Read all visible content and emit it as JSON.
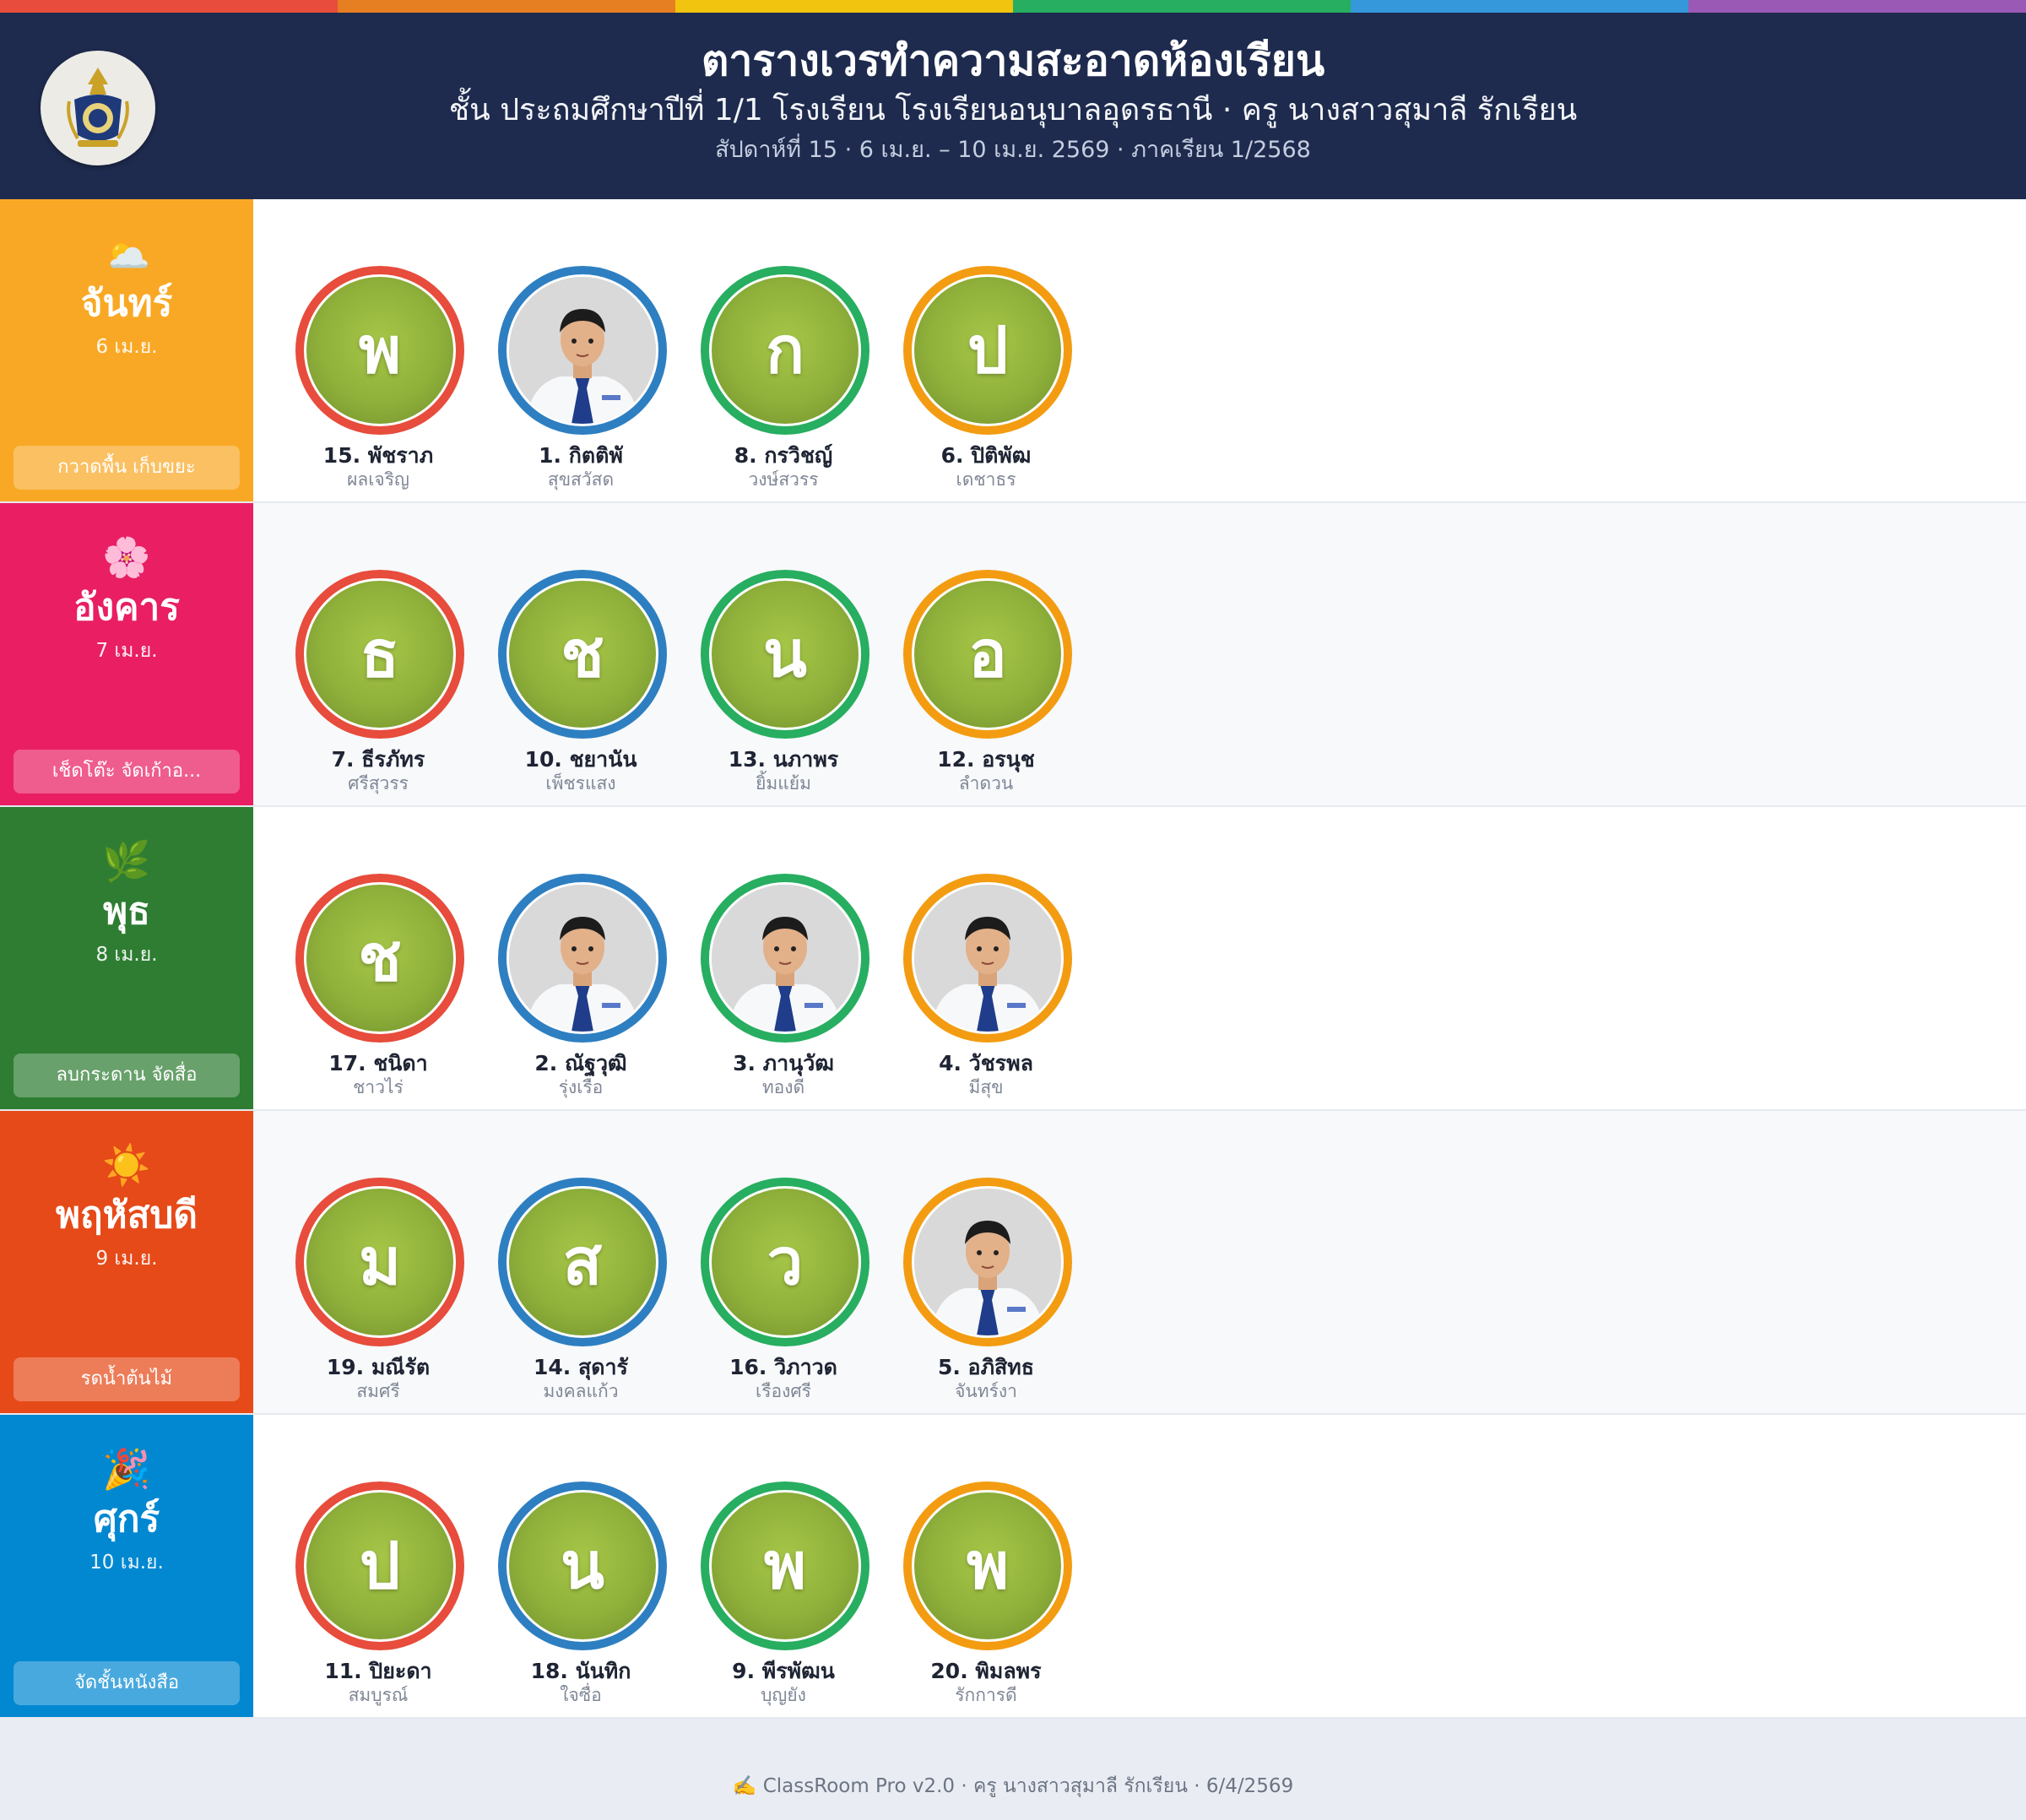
{
  "theme": {
    "rainbow": [
      "#e74c3c",
      "#e67e22",
      "#f1c40f",
      "#27ae60",
      "#3498db",
      "#9b59b6"
    ],
    "header_bg": "#1e2b4e"
  },
  "header": {
    "title": "ตารางเวรทำความสะอาดห้องเรียน",
    "subtitle": "ชั้น ประถมศึกษาปีที่ 1/1 โรงเรียน โรงเรียนอนุบาลอุดรธานี  ·  ครู นางสาวสุมาลี รักเรียน",
    "week_line": "สัปดาห์ที่ 15  ·  6 เม.ย. – 10 เม.ย. 2569  ·  ภาคเรียน 1/2568",
    "logo_icon": "school-emblem-icon"
  },
  "days": [
    {
      "name": "จันทร์",
      "date": "6 เม.ย.",
      "emoji": "⛅",
      "task": "กวาดพื้น เก็บขยะ",
      "color": "#f9a825",
      "students": [
        {
          "initial": "พ",
          "photo": false,
          "name": "15. พัชราภ",
          "last": "ผลเจริญ"
        },
        {
          "initial": "",
          "photo": true,
          "name": "1. กิตติพั",
          "last": "สุขสวัสด"
        },
        {
          "initial": "ก",
          "photo": false,
          "name": "8. กรวิชญ์",
          "last": "วงษ์สวรร"
        },
        {
          "initial": "ป",
          "photo": false,
          "name": "6. ปิติพัฒ",
          "last": "เดชาธร"
        }
      ]
    },
    {
      "name": "อังคาร",
      "date": "7 เม.ย.",
      "emoji": "🌸",
      "task": "เช็ดโต๊ะ จัดเก้าอ...",
      "color": "#e91e63",
      "students": [
        {
          "initial": "ธ",
          "photo": false,
          "name": "7. ธีรภัทร",
          "last": "ศรีสุวรร"
        },
        {
          "initial": "ช",
          "photo": false,
          "name": "10. ชยานัน",
          "last": "เพ็ชรแสง"
        },
        {
          "initial": "น",
          "photo": false,
          "name": "13. นภาพร",
          "last": "ยิ้มแย้ม"
        },
        {
          "initial": "อ",
          "photo": false,
          "name": "12. อรนุช",
          "last": "ลำดวน"
        }
      ]
    },
    {
      "name": "พุธ",
      "date": "8 เม.ย.",
      "emoji": "🌿",
      "task": "ลบกระดาน จัดสื่อ",
      "color": "#2e7d32",
      "students": [
        {
          "initial": "ช",
          "photo": false,
          "name": "17. ชนิดา",
          "last": "ชาวไร่"
        },
        {
          "initial": "",
          "photo": true,
          "name": "2. ณัฐวุฒิ",
          "last": "รุ่งเรือ"
        },
        {
          "initial": "",
          "photo": true,
          "name": "3. ภานุวัฒ",
          "last": "ทองดี"
        },
        {
          "initial": "",
          "photo": true,
          "name": "4. วัชรพล",
          "last": "มีสุข"
        }
      ]
    },
    {
      "name": "พฤหัสบดี",
      "date": "9 เม.ย.",
      "emoji": "☀️",
      "task": "รดน้ำต้นไม้",
      "color": "#e64a19",
      "students": [
        {
          "initial": "ม",
          "photo": false,
          "name": "19. มณีรัต",
          "last": "สมศรี"
        },
        {
          "initial": "ส",
          "photo": false,
          "name": "14. สุดารั",
          "last": "มงคลแก้ว"
        },
        {
          "initial": "ว",
          "photo": false,
          "name": "16. วิภาวด",
          "last": "เรืองศรี"
        },
        {
          "initial": "",
          "photo": true,
          "name": "5. อภิสิทธ",
          "last": "จันทร์งา"
        }
      ]
    },
    {
      "name": "ศุกร์",
      "date": "10 เม.ย.",
      "emoji": "🎉",
      "task": "จัดชั้นหนังสือ",
      "color": "#0288d1",
      "students": [
        {
          "initial": "ป",
          "photo": false,
          "name": "11. ปิยะดา",
          "last": "สมบูรณ์"
        },
        {
          "initial": "น",
          "photo": false,
          "name": "18. นันทิก",
          "last": "ใจซื่อ"
        },
        {
          "initial": "พ",
          "photo": false,
          "name": "9. พีรพัฒน",
          "last": "บุญยัง"
        },
        {
          "initial": "พ",
          "photo": false,
          "name": "20. พิมลพร",
          "last": "รักการดี"
        }
      ]
    }
  ],
  "footer": {
    "icon": "✍️",
    "text": "ClassRoom Pro v2.0  ·  ครู นางสาวสุมาลี รักเรียน  ·  6/4/2569"
  }
}
